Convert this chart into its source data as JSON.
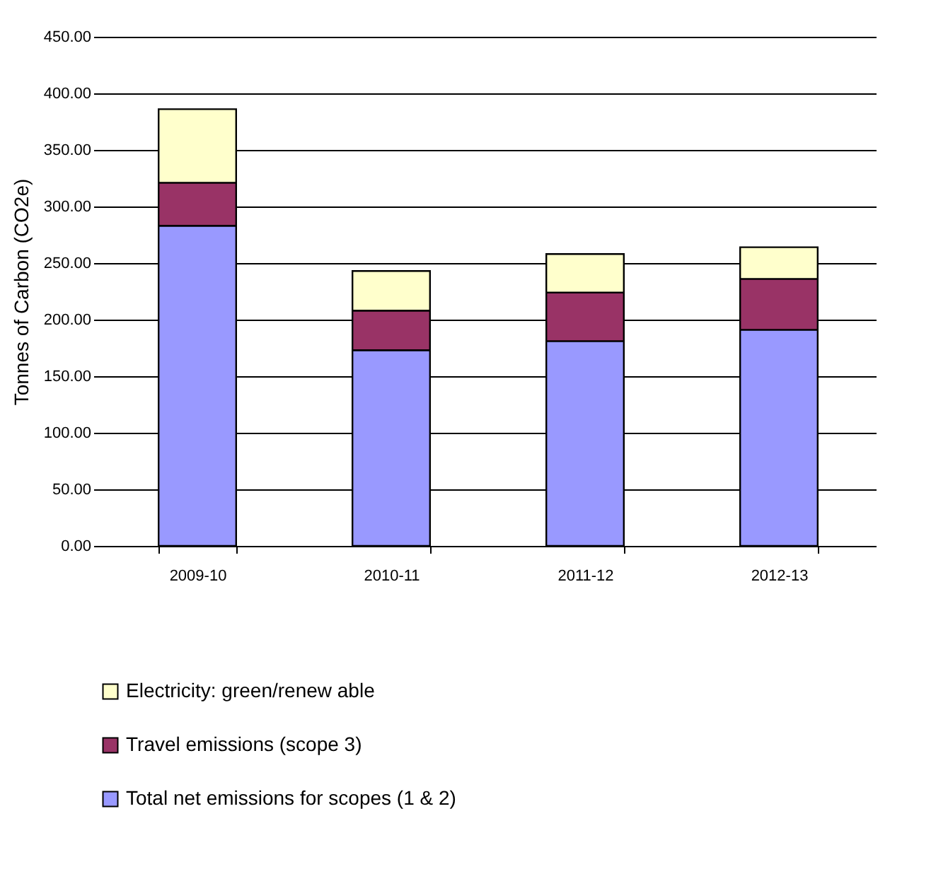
{
  "chart_data": {
    "type": "bar",
    "stacked": true,
    "ylabel": "Tonnes of Carbon (CO2e)",
    "categories": [
      "2009-10",
      "2010-11",
      "2011-12",
      "2012-13"
    ],
    "series": [
      {
        "name": "Total net emissions for scopes (1 & 2)",
        "color": "#9999ff",
        "values": [
          283,
          173,
          181,
          191
        ]
      },
      {
        "name": "Travel emissions (scope 3)",
        "color": "#993366",
        "values": [
          38,
          35,
          43,
          45
        ]
      },
      {
        "name": "Electricity: green/renew able",
        "color": "#ffffcc",
        "values": [
          65,
          35,
          34,
          28
        ]
      }
    ],
    "ylim": [
      0,
      450
    ],
    "yticks": [
      {
        "value": 0,
        "label": "0.00"
      },
      {
        "value": 50,
        "label": "50.00"
      },
      {
        "value": 100,
        "label": "100.00"
      },
      {
        "value": 150,
        "label": "150.00"
      },
      {
        "value": 200,
        "label": "200.00"
      },
      {
        "value": 250,
        "label": "250.00"
      },
      {
        "value": 300,
        "label": "300.00"
      },
      {
        "value": 350,
        "label": "350.00"
      },
      {
        "value": 400,
        "label": "400.00"
      },
      {
        "value": 450,
        "label": "450.00"
      }
    ],
    "grid": "y",
    "legend": "bottom"
  }
}
